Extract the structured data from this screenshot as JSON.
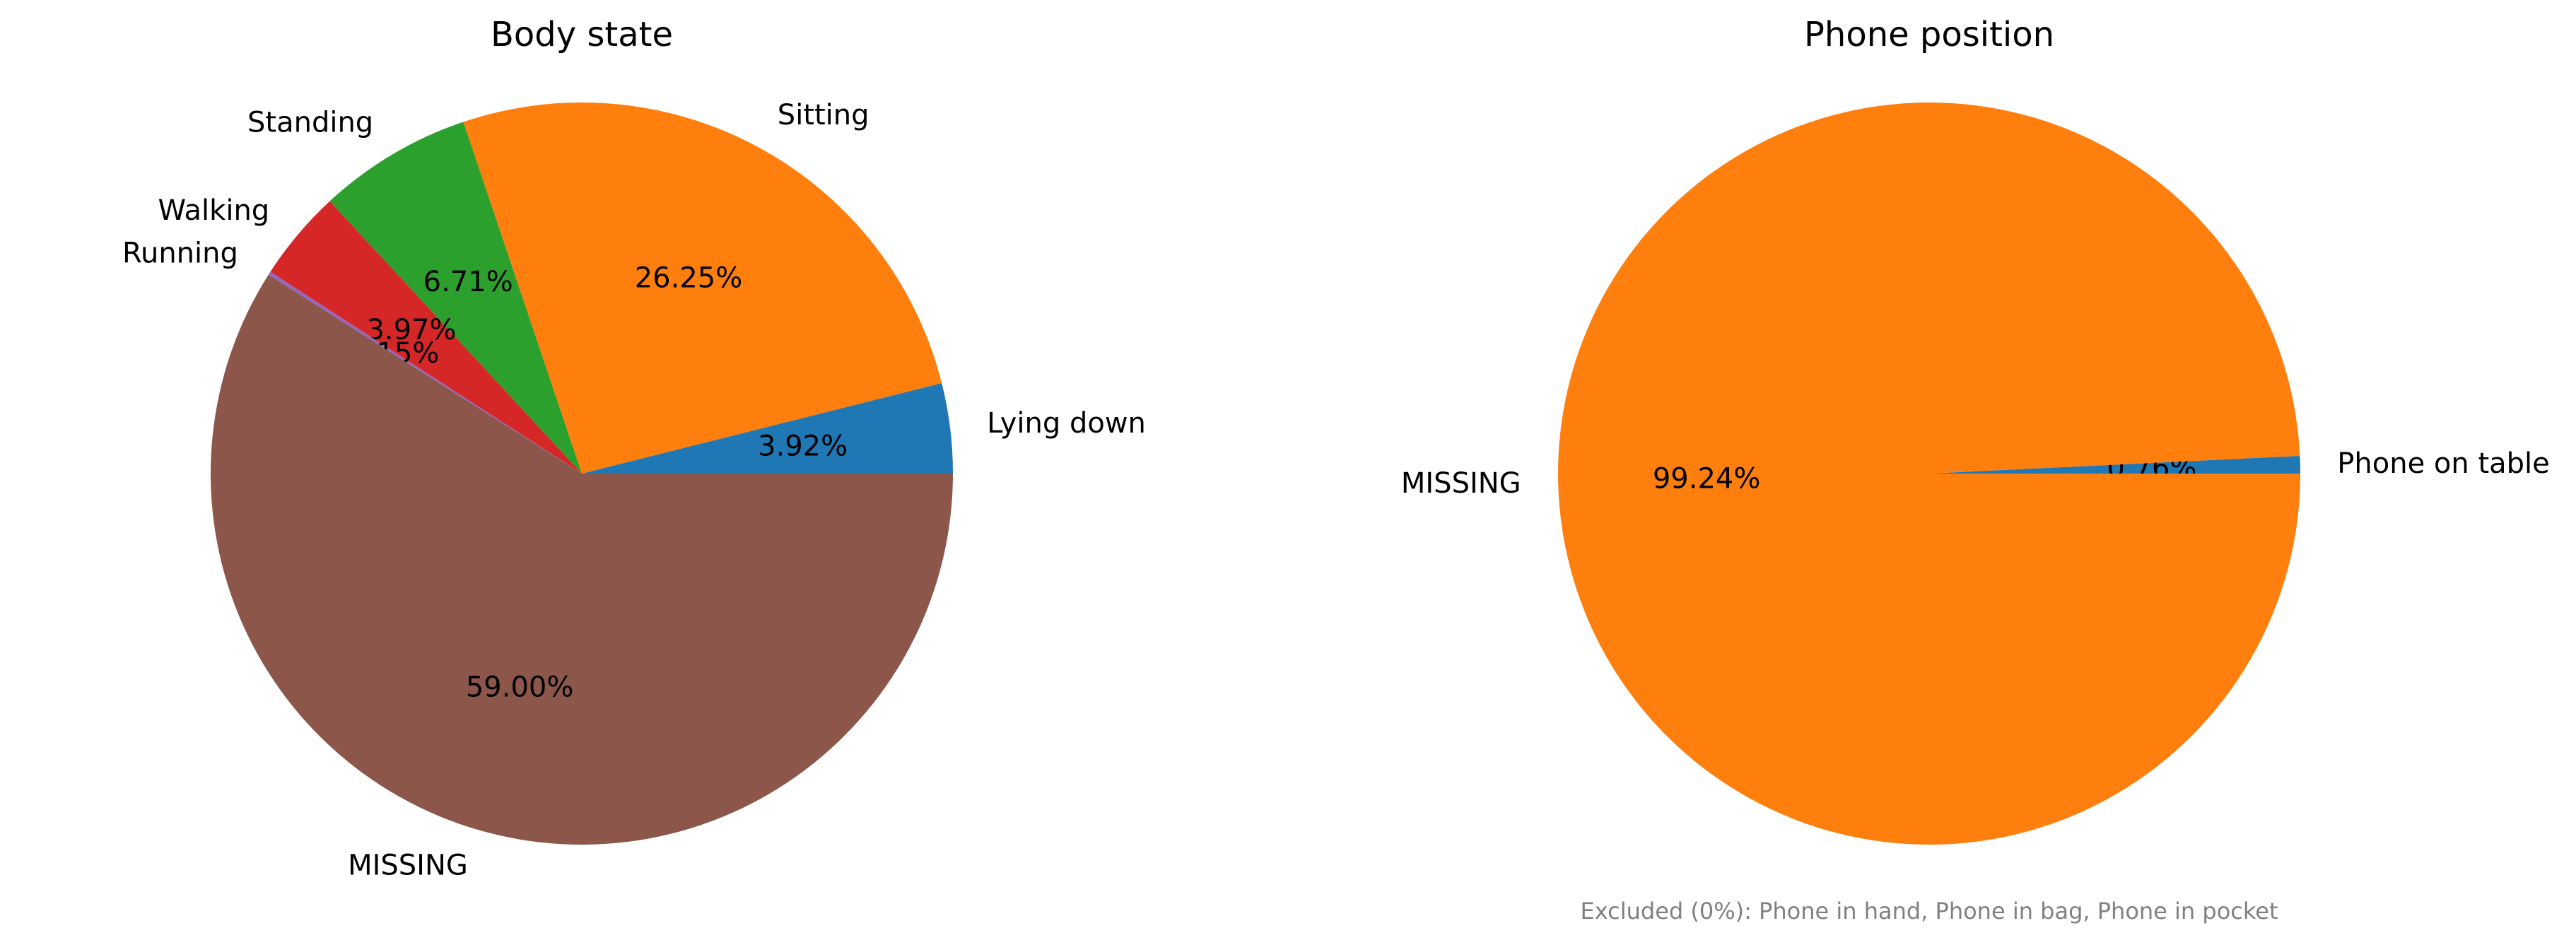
{
  "chart_data": [
    {
      "type": "pie",
      "title": "Body state",
      "start_angle_deg": 0,
      "direction": "counterclockwise",
      "slices": [
        {
          "label": "Lying down",
          "value": 3.92,
          "pct_label": "3.92%",
          "color": "#1f77b4"
        },
        {
          "label": "Sitting",
          "value": 26.25,
          "pct_label": "26.25%",
          "color": "#ff7f0e"
        },
        {
          "label": "Standing",
          "value": 6.71,
          "pct_label": "6.71%",
          "color": "#2ca02c"
        },
        {
          "label": "Walking",
          "value": 3.97,
          "pct_label": "3.97%",
          "color": "#d62728"
        },
        {
          "label": "Running",
          "value": 0.15,
          "pct_label": "0.15%",
          "color": "#9467bd"
        },
        {
          "label": "MISSING",
          "value": 59.0,
          "pct_label": "59.00%",
          "color": "#8c564b"
        }
      ],
      "footnote": ""
    },
    {
      "type": "pie",
      "title": "Phone position",
      "start_angle_deg": 0,
      "direction": "counterclockwise",
      "slices": [
        {
          "label": "Phone on table",
          "value": 0.76,
          "pct_label": "0.76%",
          "color": "#1f77b4"
        },
        {
          "label": "MISSING",
          "value": 99.24,
          "pct_label": "99.24%",
          "color": "#ff7f0e"
        }
      ],
      "footnote": "Excluded (0%): Phone in hand, Phone in bag, Phone in pocket"
    }
  ]
}
